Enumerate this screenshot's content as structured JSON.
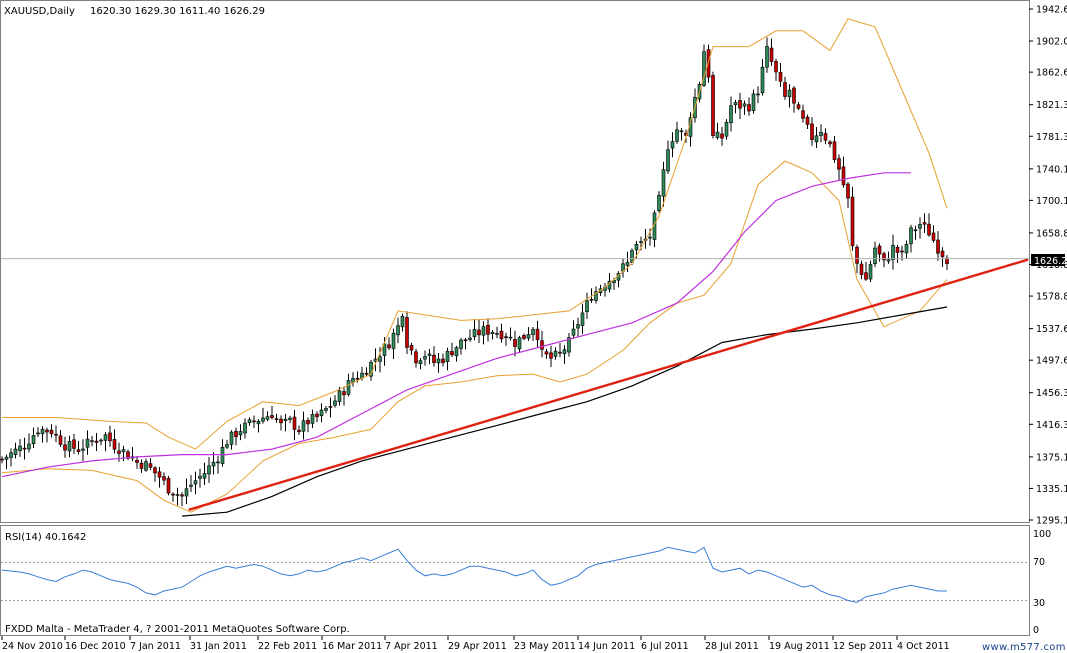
{
  "header": {
    "symbol_label": "XAUUSD,Daily",
    "ohlc_text": "1620.30 1629.30 1611.40 1626.29"
  },
  "rsi_panel": {
    "label": "RSI(14) 40.1642",
    "levels": [
      "100",
      "70",
      "30",
      "0"
    ]
  },
  "footer": {
    "platform_text": "FXDD Malta - MetaTrader 4, ? 2001-2011 MetaQuotes Software Corp.",
    "watermark": "www.m577.com"
  },
  "current_price_label": "1626.29",
  "colors": {
    "bull_candle": "#2e8b57",
    "bear_candle": "#c80000",
    "bollinger": "#e8a030",
    "ma_medium": "#c030e0",
    "ma_long": "#000000",
    "trendline": "#e02010",
    "rsi_line": "#3a7ed8",
    "rsi_levels": "#a0a0a0"
  },
  "chart_data": {
    "type": "candlestick",
    "price_axis": {
      "ticks": [
        "1942.60",
        "1902.05",
        "1862.60",
        "1821.35",
        "1781.35",
        "1740.10",
        "1700.10",
        "1658.85",
        "1618.85",
        "1578.85",
        "1537.60",
        "1497.60",
        "1456.35",
        "1416.35",
        "1375.10",
        "1335.10",
        "1295.10"
      ],
      "range": [
        1295.1,
        1942.6
      ]
    },
    "time_axis": {
      "ticks": [
        "24 Nov 2010",
        "16 Dec 2010",
        "7 Jan 2011",
        "31 Jan 2011",
        "22 Feb 2011",
        "16 Mar 2011",
        "7 Apr 2011",
        "29 Apr 2011",
        "23 May 2011",
        "14 Jun 2011",
        "6 Jul 2011",
        "28 Jul 2011",
        "19 Aug 2011",
        "12 Sep 2011",
        "4 Oct 2011"
      ]
    },
    "close_path": [
      [
        0,
        1372
      ],
      [
        5,
        1390
      ],
      [
        8,
        1410
      ],
      [
        11,
        1408
      ],
      [
        14,
        1390
      ],
      [
        17,
        1385
      ],
      [
        20,
        1395
      ],
      [
        23,
        1402
      ],
      [
        25,
        1390
      ],
      [
        28,
        1378
      ],
      [
        30,
        1368
      ],
      [
        32,
        1365
      ],
      [
        35,
        1350
      ],
      [
        37,
        1335
      ],
      [
        40,
        1325
      ],
      [
        42,
        1340
      ],
      [
        45,
        1355
      ],
      [
        48,
        1375
      ],
      [
        50,
        1395
      ],
      [
        53,
        1410
      ],
      [
        56,
        1420
      ],
      [
        58,
        1425
      ],
      [
        60,
        1430
      ],
      [
        62,
        1415
      ],
      [
        64,
        1420
      ],
      [
        66,
        1410
      ],
      [
        68,
        1420
      ],
      [
        70,
        1425
      ],
      [
        73,
        1440
      ],
      [
        76,
        1460
      ],
      [
        78,
        1475
      ],
      [
        80,
        1480
      ],
      [
        83,
        1500
      ],
      [
        86,
        1520
      ],
      [
        88,
        1540
      ],
      [
        89,
        1560
      ],
      [
        90,
        1520
      ],
      [
        92,
        1500
      ],
      [
        94,
        1505
      ],
      [
        96,
        1495
      ],
      [
        98,
        1500
      ],
      [
        100,
        1510
      ],
      [
        102,
        1520
      ],
      [
        105,
        1530
      ],
      [
        107,
        1535
      ],
      [
        109,
        1535
      ],
      [
        112,
        1530
      ],
      [
        114,
        1520
      ],
      [
        116,
        1528
      ],
      [
        118,
        1540
      ],
      [
        119,
        1530
      ],
      [
        120,
        1505
      ],
      [
        122,
        1500
      ],
      [
        124,
        1505
      ],
      [
        126,
        1520
      ],
      [
        128,
        1545
      ],
      [
        131,
        1580
      ],
      [
        133,
        1590
      ],
      [
        135,
        1600
      ],
      [
        137,
        1610
      ],
      [
        139,
        1620
      ],
      [
        140,
        1640
      ],
      [
        142,
        1645
      ],
      [
        144,
        1655
      ],
      [
        146,
        1700
      ],
      [
        148,
        1770
      ],
      [
        150,
        1790
      ],
      [
        152,
        1780
      ],
      [
        153,
        1810
      ],
      [
        155,
        1850
      ],
      [
        156,
        1890
      ],
      [
        157,
        1860
      ],
      [
        158,
        1780
      ],
      [
        160,
        1780
      ],
      [
        162,
        1820
      ],
      [
        164,
        1820
      ],
      [
        166,
        1820
      ],
      [
        168,
        1840
      ],
      [
        170,
        1890
      ],
      [
        171,
        1875
      ],
      [
        172,
        1860
      ],
      [
        174,
        1830
      ],
      [
        175,
        1840
      ],
      [
        176,
        1820
      ],
      [
        178,
        1800
      ],
      [
        180,
        1780
      ],
      [
        182,
        1790
      ],
      [
        184,
        1770
      ],
      [
        186,
        1740
      ],
      [
        188,
        1700
      ],
      [
        189,
        1640
      ],
      [
        190,
        1620
      ],
      [
        192,
        1600
      ],
      [
        194,
        1640
      ],
      [
        196,
        1620
      ],
      [
        198,
        1640
      ],
      [
        200,
        1630
      ],
      [
        202,
        1660
      ],
      [
        204,
        1670
      ],
      [
        206,
        1660
      ],
      [
        208,
        1640
      ],
      [
        210,
        1626
      ]
    ],
    "bollinger_upper": [
      [
        0,
        1425
      ],
      [
        12,
        1425
      ],
      [
        24,
        1420
      ],
      [
        32,
        1418
      ],
      [
        37,
        1400
      ],
      [
        43,
        1385
      ],
      [
        50,
        1420
      ],
      [
        58,
        1445
      ],
      [
        66,
        1440
      ],
      [
        74,
        1458
      ],
      [
        82,
        1480
      ],
      [
        88,
        1560
      ],
      [
        94,
        1555
      ],
      [
        102,
        1548
      ],
      [
        110,
        1550
      ],
      [
        118,
        1555
      ],
      [
        126,
        1560
      ],
      [
        134,
        1590
      ],
      [
        140,
        1620
      ],
      [
        146,
        1680
      ],
      [
        152,
        1780
      ],
      [
        158,
        1895
      ],
      [
        166,
        1895
      ],
      [
        172,
        1915
      ],
      [
        178,
        1915
      ],
      [
        184,
        1890
      ],
      [
        188,
        1930
      ],
      [
        194,
        1920
      ],
      [
        200,
        1840
      ],
      [
        206,
        1760
      ],
      [
        210,
        1690
      ]
    ],
    "bollinger_lower": [
      [
        0,
        1355
      ],
      [
        10,
        1360
      ],
      [
        20,
        1358
      ],
      [
        30,
        1345
      ],
      [
        36,
        1320
      ],
      [
        42,
        1305
      ],
      [
        50,
        1328
      ],
      [
        58,
        1370
      ],
      [
        66,
        1392
      ],
      [
        74,
        1400
      ],
      [
        82,
        1410
      ],
      [
        88,
        1445
      ],
      [
        94,
        1465
      ],
      [
        102,
        1470
      ],
      [
        110,
        1478
      ],
      [
        118,
        1480
      ],
      [
        124,
        1470
      ],
      [
        130,
        1480
      ],
      [
        138,
        1510
      ],
      [
        144,
        1545
      ],
      [
        150,
        1570
      ],
      [
        156,
        1580
      ],
      [
        162,
        1620
      ],
      [
        168,
        1720
      ],
      [
        174,
        1750
      ],
      [
        180,
        1735
      ],
      [
        186,
        1700
      ],
      [
        190,
        1600
      ],
      [
        196,
        1540
      ],
      [
        204,
        1560
      ],
      [
        210,
        1600
      ]
    ],
    "ma_medium": [
      [
        0,
        1350
      ],
      [
        10,
        1362
      ],
      [
        20,
        1370
      ],
      [
        30,
        1375
      ],
      [
        40,
        1378
      ],
      [
        50,
        1378
      ],
      [
        60,
        1385
      ],
      [
        70,
        1400
      ],
      [
        80,
        1430
      ],
      [
        90,
        1460
      ],
      [
        100,
        1480
      ],
      [
        110,
        1500
      ],
      [
        120,
        1515
      ],
      [
        130,
        1530
      ],
      [
        140,
        1545
      ],
      [
        150,
        1570
      ],
      [
        158,
        1610
      ],
      [
        165,
        1660
      ],
      [
        172,
        1700
      ],
      [
        180,
        1718
      ],
      [
        188,
        1728
      ],
      [
        196,
        1735
      ],
      [
        202,
        1735
      ]
    ],
    "ma_long": [
      [
        40,
        1300
      ],
      [
        50,
        1305
      ],
      [
        60,
        1325
      ],
      [
        70,
        1350
      ],
      [
        80,
        1370
      ],
      [
        90,
        1385
      ],
      [
        100,
        1400
      ],
      [
        110,
        1415
      ],
      [
        120,
        1430
      ],
      [
        130,
        1445
      ],
      [
        140,
        1465
      ],
      [
        150,
        1490
      ],
      [
        160,
        1520
      ],
      [
        170,
        1530
      ],
      [
        180,
        1537
      ],
      [
        190,
        1545
      ],
      [
        200,
        1555
      ],
      [
        210,
        1565
      ]
    ],
    "trendline": [
      [
        41.5,
        1308
      ],
      [
        228,
        1625
      ]
    ],
    "rsi_series": [
      [
        0,
        62
      ],
      [
        4,
        60
      ],
      [
        6,
        58
      ],
      [
        8,
        55
      ],
      [
        10,
        52
      ],
      [
        12,
        50
      ],
      [
        14,
        55
      ],
      [
        16,
        58
      ],
      [
        18,
        62
      ],
      [
        20,
        60
      ],
      [
        22,
        56
      ],
      [
        24,
        52
      ],
      [
        26,
        50
      ],
      [
        28,
        48
      ],
      [
        30,
        44
      ],
      [
        32,
        38
      ],
      [
        34,
        36
      ],
      [
        36,
        40
      ],
      [
        38,
        42
      ],
      [
        40,
        44
      ],
      [
        42,
        50
      ],
      [
        44,
        56
      ],
      [
        46,
        60
      ],
      [
        48,
        63
      ],
      [
        50,
        66
      ],
      [
        52,
        64
      ],
      [
        54,
        66
      ],
      [
        56,
        68
      ],
      [
        58,
        66
      ],
      [
        60,
        62
      ],
      [
        62,
        58
      ],
      [
        64,
        56
      ],
      [
        66,
        58
      ],
      [
        68,
        62
      ],
      [
        70,
        60
      ],
      [
        72,
        62
      ],
      [
        74,
        66
      ],
      [
        76,
        70
      ],
      [
        78,
        72
      ],
      [
        80,
        75
      ],
      [
        82,
        72
      ],
      [
        84,
        76
      ],
      [
        86,
        80
      ],
      [
        88,
        84
      ],
      [
        90,
        72
      ],
      [
        92,
        62
      ],
      [
        94,
        56
      ],
      [
        96,
        58
      ],
      [
        98,
        56
      ],
      [
        100,
        58
      ],
      [
        102,
        62
      ],
      [
        104,
        66
      ],
      [
        106,
        66
      ],
      [
        108,
        64
      ],
      [
        110,
        62
      ],
      [
        112,
        60
      ],
      [
        114,
        56
      ],
      [
        116,
        58
      ],
      [
        118,
        62
      ],
      [
        120,
        52
      ],
      [
        122,
        46
      ],
      [
        124,
        48
      ],
      [
        126,
        52
      ],
      [
        128,
        56
      ],
      [
        130,
        64
      ],
      [
        132,
        68
      ],
      [
        134,
        70
      ],
      [
        136,
        72
      ],
      [
        138,
        74
      ],
      [
        140,
        76
      ],
      [
        142,
        78
      ],
      [
        144,
        80
      ],
      [
        146,
        82
      ],
      [
        148,
        86
      ],
      [
        150,
        84
      ],
      [
        152,
        82
      ],
      [
        154,
        80
      ],
      [
        156,
        86
      ],
      [
        158,
        64
      ],
      [
        160,
        60
      ],
      [
        162,
        62
      ],
      [
        164,
        64
      ],
      [
        166,
        58
      ],
      [
        168,
        62
      ],
      [
        170,
        60
      ],
      [
        172,
        56
      ],
      [
        174,
        52
      ],
      [
        176,
        48
      ],
      [
        178,
        44
      ],
      [
        180,
        46
      ],
      [
        182,
        40
      ],
      [
        184,
        36
      ],
      [
        186,
        34
      ],
      [
        188,
        30
      ],
      [
        190,
        28
      ],
      [
        192,
        34
      ],
      [
        194,
        36
      ],
      [
        196,
        38
      ],
      [
        198,
        42
      ],
      [
        200,
        44
      ],
      [
        202,
        46
      ],
      [
        204,
        44
      ],
      [
        206,
        42
      ],
      [
        208,
        40
      ],
      [
        210,
        40
      ]
    ]
  }
}
